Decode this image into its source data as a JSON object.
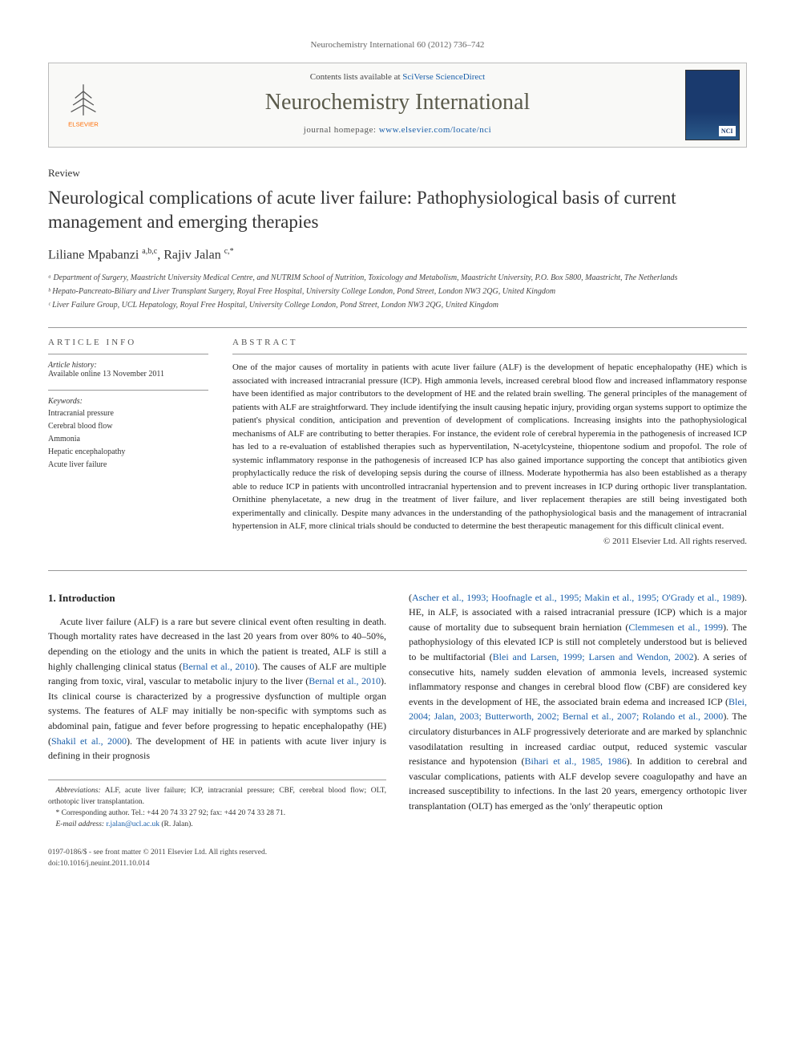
{
  "header_ref": "Neurochemistry International 60 (2012) 736–742",
  "banner": {
    "contents_line_pre": "Contents lists available at ",
    "contents_line_link": "SciVerse ScienceDirect",
    "journal_name": "Neurochemistry International",
    "homepage_line_pre": "journal homepage: ",
    "homepage_url": "www.elsevier.com/locate/nci",
    "elsevier_label": "ELSEVIER"
  },
  "review_label": "Review",
  "title": "Neurological complications of acute liver failure: Pathophysiological basis of current management and emerging therapies",
  "authors_html": "Liliane Mpabanzi <sup>a,b,c</sup>, Rajiv Jalan <sup>c,*</sup>",
  "affiliations": [
    "ᵃ Department of Surgery, Maastricht University Medical Centre, and NUTRIM School of Nutrition, Toxicology and Metabolism, Maastricht University, P.O. Box 5800, Maastricht, The Netherlands",
    "ᵇ Hepato-Pancreato-Biliary and Liver Transplant Surgery, Royal Free Hospital, University College London, Pond Street, London NW3 2QG, United Kingdom",
    "ᶜ Liver Failure Group, UCL Hepatology, Royal Free Hospital, University College London, Pond Street, London NW3 2QG, United Kingdom"
  ],
  "article_info_header": "ARTICLE INFO",
  "abstract_header": "ABSTRACT",
  "history": {
    "label": "Article history:",
    "text": "Available online 13 November 2011"
  },
  "keywords": {
    "label": "Keywords:",
    "items": [
      "Intracranial pressure",
      "Cerebral blood flow",
      "Ammonia",
      "Hepatic encephalopathy",
      "Acute liver failure"
    ]
  },
  "abstract_text": "One of the major causes of mortality in patients with acute liver failure (ALF) is the development of hepatic encephalopathy (HE) which is associated with increased intracranial pressure (ICP). High ammonia levels, increased cerebral blood flow and increased inflammatory response have been identified as major contributors to the development of HE and the related brain swelling. The general principles of the management of patients with ALF are straightforward. They include identifying the insult causing hepatic injury, providing organ systems support to optimize the patient's physical condition, anticipation and prevention of development of complications. Increasing insights into the pathophysiological mechanisms of ALF are contributing to better therapies. For instance, the evident role of cerebral hyperemia in the pathogenesis of increased ICP has led to a re-evaluation of established therapies such as hyperventilation, N-acetylcysteine, thiopentone sodium and propofol. The role of systemic inflammatory response in the pathogenesis of increased ICP has also gained importance supporting the concept that antibiotics given prophylactically reduce the risk of developing sepsis during the course of illness. Moderate hypothermia has also been established as a therapy able to reduce ICP in patients with uncontrolled intracranial hypertension and to prevent increases in ICP during orthopic liver transplantation. Ornithine phenylacetate, a new drug in the treatment of liver failure, and liver replacement therapies are still being investigated both experimentally and clinically. Despite many advances in the understanding of the pathophysiological basis and the management of intracranial hypertension in ALF, more clinical trials should be conducted to determine the best therapeutic management for this difficult clinical event.",
  "copyright": "© 2011 Elsevier Ltd. All rights reserved.",
  "intro": {
    "heading": "1. Introduction",
    "col1_p1_pre": "Acute liver failure (ALF) is a rare but severe clinical event often resulting in death. Though mortality rates have decreased in the last 20 years from over 80% to 40–50%, depending on the etiology and the units in which the patient is treated, ALF is still a highly challenging clinical status (",
    "col1_c1": "Bernal et al., 2010",
    "col1_p1_mid1": "). The causes of ALF are multiple ranging from toxic, viral, vascular to metabolic injury to the liver (",
    "col1_c2": "Bernal et al., 2010",
    "col1_p1_mid2": "). Its clinical course is characterized by a progressive dysfunction of multiple organ systems. The features of ALF may initially be non-specific with symptoms such as abdominal pain, fatigue and fever before progressing to hepatic encephalopathy (HE) (",
    "col1_c3": "Shakil et al., 2000",
    "col1_p1_end": "). The development of HE in patients with acute liver injury is defining in their prognosis",
    "col2_p1_pre": "(",
    "col2_c1": "Ascher et al., 1993; Hoofnagle et al., 1995; Makin et al., 1995; O'Grady et al., 1989",
    "col2_p1_mid1": "). HE, in ALF, is associated with a raised intracranial pressure (ICP) which is a major cause of mortality due to subsequent brain herniation (",
    "col2_c2": "Clemmesen et al., 1999",
    "col2_p1_mid2": "). The pathophysiology of this elevated ICP is still not completely understood but is believed to be multifactorial (",
    "col2_c3": "Blei and Larsen, 1999; Larsen and Wendon, 2002",
    "col2_p1_mid3": "). A series of consecutive hits, namely sudden elevation of ammonia levels, increased systemic inflammatory response and changes in cerebral blood flow (CBF) are considered key events in the development of HE, the associated brain edema and increased ICP (",
    "col2_c4": "Blei, 2004; Jalan, 2003; Butterworth, 2002; Bernal et al., 2007; Rolando et al., 2000",
    "col2_p1_mid4": "). The circulatory disturbances in ALF progressively deteriorate and are marked by splanchnic vasodilatation resulting in increased cardiac output, reduced systemic vascular resistance and hypotension (",
    "col2_c5": "Bihari et al., 1985, 1986",
    "col2_p1_end": "). In addition to cerebral and vascular complications, patients with ALF develop severe coagulopathy and have an increased susceptibility to infections. In the last 20 years, emergency orthotopic liver transplantation (OLT) has emerged as the 'only' therapeutic option"
  },
  "footnotes": {
    "abbrev_label": "Abbreviations:",
    "abbrev_text": " ALF, acute liver failure; ICP, intracranial pressure; CBF, cerebral blood flow; OLT, orthotopic liver transplantation.",
    "corr_label": "* Corresponding author.",
    "corr_text": " Tel.: +44 20 74 33 27 92; fax: +44 20 74 33 28 71.",
    "email_label": "E-mail address:",
    "email": "r.jalan@ucl.ac.uk",
    "email_suffix": " (R. Jalan)."
  },
  "footer": {
    "line1": "0197-0186/$ - see front matter © 2011 Elsevier Ltd. All rights reserved.",
    "line2": "doi:10.1016/j.neuint.2011.10.014"
  },
  "colors": {
    "link": "#1a5faa",
    "text": "#222222",
    "header_gray": "#555555",
    "border": "#999999",
    "journal_cover_top": "#1a3a6e",
    "journal_cover_bottom": "#2a5a8a",
    "elsevier_orange": "#ff6b00"
  }
}
